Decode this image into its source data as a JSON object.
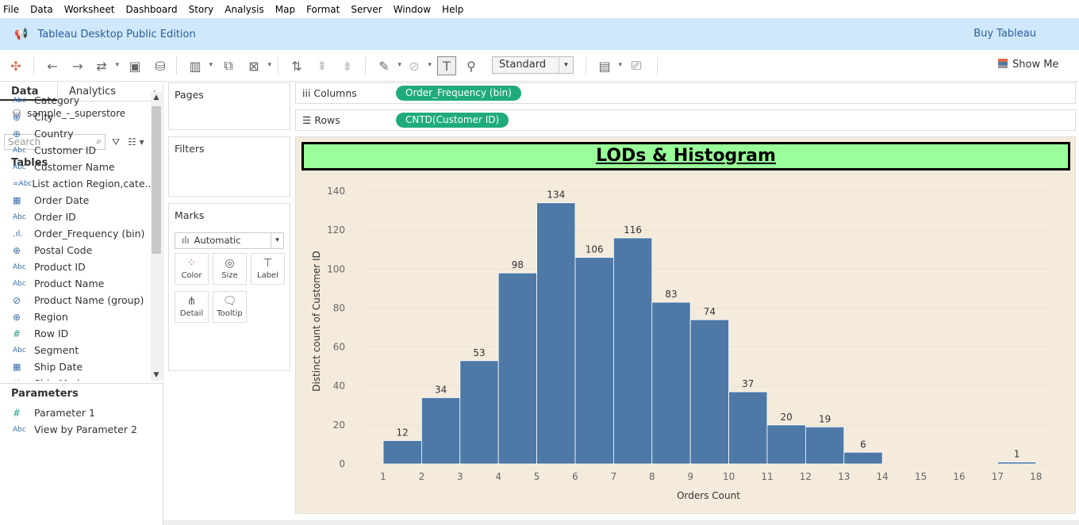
{
  "menu": [
    "File",
    "Data",
    "Worksheet",
    "Dashboard",
    "Story",
    "Analysis",
    "Map",
    "Format",
    "Server",
    "Window",
    "Help"
  ],
  "app": {
    "title": "Tableau Desktop Public Edition",
    "buy_label": "Buy Tableau"
  },
  "toolbar": {
    "fit_select": "Standard",
    "show_me": "Show Me"
  },
  "left_panel": {
    "tab_data": "Data",
    "tab_analytics": "Analytics",
    "data_source": "sample_-_superstore",
    "search_placeholder": "Search",
    "tables_heading": "Tables",
    "fields": [
      {
        "type": "Abc",
        "name": "Category"
      },
      {
        "type": "⊕",
        "name": "City"
      },
      {
        "type": "⊕",
        "name": "Country"
      },
      {
        "type": "Abc",
        "name": "Customer ID"
      },
      {
        "type": "Abc",
        "name": "Customer Name"
      },
      {
        "type": "=Abc",
        "name": "List action Region,cate..."
      },
      {
        "type": "▦",
        "name": "Order Date"
      },
      {
        "type": "Abc",
        "name": "Order ID"
      },
      {
        "type": ".ıl.",
        "name": "Order_Frequency (bin)"
      },
      {
        "type": "⊕",
        "name": "Postal Code"
      },
      {
        "type": "Abc",
        "name": "Product ID"
      },
      {
        "type": "Abc",
        "name": "Product Name"
      },
      {
        "type": "⊘",
        "name": "Product Name (group)"
      },
      {
        "type": "⊕",
        "name": "Region"
      },
      {
        "type": "#",
        "name": "Row ID"
      },
      {
        "type": "Abc",
        "name": "Segment"
      },
      {
        "type": "▦",
        "name": "Ship Date"
      },
      {
        "type": "Abc",
        "name": "Ship Mode"
      }
    ],
    "parameters_heading": "Parameters",
    "parameters": [
      {
        "type": "#",
        "name": "Parameter 1"
      },
      {
        "type": "Abc",
        "name": "View by Parameter 2"
      }
    ]
  },
  "cards": {
    "pages": "Pages",
    "filters": "Filters",
    "marks": "Marks",
    "marks_type": "Automatic",
    "mark_buttons": [
      "Color",
      "Size",
      "Label",
      "Detail",
      "Tooltip"
    ]
  },
  "shelves": {
    "columns_label": "Columns",
    "columns_pill": "Order_Frequency (bin)",
    "rows_label": "Rows",
    "rows_pill": "CNTD(Customer ID)"
  },
  "viz": {
    "title": "LODs & Histogram"
  },
  "chart_data": {
    "type": "bar",
    "title": "LODs & Histogram",
    "xlabel": "Orders Count",
    "ylabel": "Distinct count of Customer ID",
    "x_ticks": [
      1,
      2,
      3,
      4,
      5,
      6,
      7,
      8,
      9,
      10,
      11,
      12,
      13,
      14,
      15,
      16,
      17,
      18
    ],
    "bins": [
      {
        "start": 1,
        "value": 12
      },
      {
        "start": 2,
        "value": 34
      },
      {
        "start": 3,
        "value": 53
      },
      {
        "start": 4,
        "value": 98
      },
      {
        "start": 5,
        "value": 134
      },
      {
        "start": 6,
        "value": 106
      },
      {
        "start": 7,
        "value": 116
      },
      {
        "start": 8,
        "value": 83
      },
      {
        "start": 9,
        "value": 74
      },
      {
        "start": 10,
        "value": 37
      },
      {
        "start": 11,
        "value": 20
      },
      {
        "start": 12,
        "value": 19
      },
      {
        "start": 13,
        "value": 6
      },
      {
        "start": 17,
        "value": 1
      }
    ],
    "y_ticks": [
      0,
      20,
      40,
      60,
      80,
      100,
      120,
      140
    ],
    "ylim": [
      0,
      140
    ],
    "bar_color": "#4e79a7",
    "background": "#f4ebdc"
  }
}
